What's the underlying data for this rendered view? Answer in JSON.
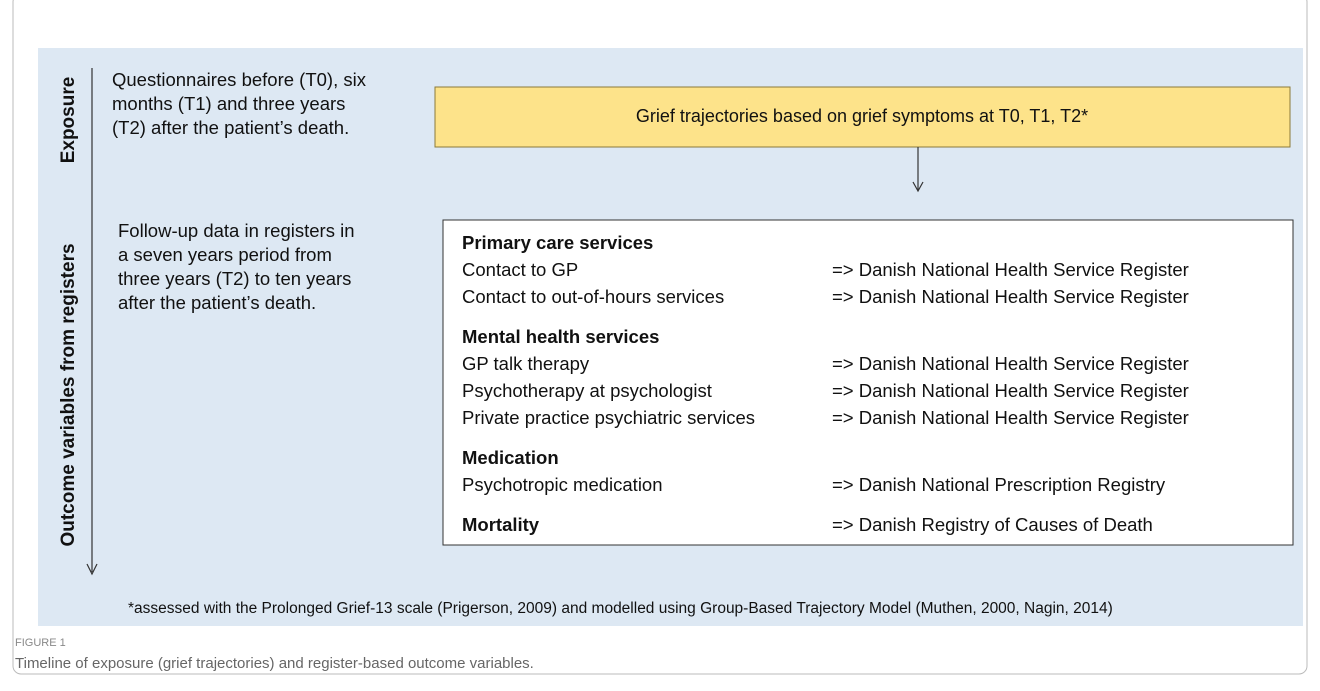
{
  "exposure_label": "Exposure",
  "outcome_label": "Outcome variables from registers",
  "exposure_text": [
    "Questionnaires before (T0), six",
    "months (T1) and three years",
    "(T2) after the patient’s death."
  ],
  "trajectory_box": "Grief trajectories based on grief symptoms at T0, T1, T2*",
  "followup_text": [
    "Follow-up data in registers in",
    "a seven years period from",
    "three years (T2) to ten years",
    "after the patient’s death."
  ],
  "sections": [
    {
      "heading": "Primary care services",
      "items": [
        {
          "label": "Contact to GP",
          "register": "=> Danish National Health Service Register"
        },
        {
          "label": "Contact to out-of-hours services",
          "register": "=> Danish National Health Service Register"
        }
      ]
    },
    {
      "heading": "Mental health services",
      "items": [
        {
          "label": "GP talk therapy",
          "register": "=> Danish National Health Service Register"
        },
        {
          "label": "Psychotherapy at psychologist",
          "register": "=> Danish National Health Service Register"
        },
        {
          "label": "Private practice psychiatric services",
          "register": "=> Danish National Health Service Register"
        }
      ]
    },
    {
      "heading": "Medication",
      "items": [
        {
          "label": "Psychotropic medication",
          "register": "=> Danish National Prescription Registry"
        }
      ]
    },
    {
      "heading": "Mortality",
      "register": "=> Danish Registry of Causes of Death",
      "items": []
    }
  ],
  "footnote": "*assessed with the Prolonged Grief-13 scale (Prigerson, 2009) and modelled using Group-Based Trajectory Model (Muthen, 2000, Nagin, 2014)",
  "figure_label": "FIGURE 1",
  "caption": "Timeline of exposure (grief trajectories) and register-based outcome variables."
}
